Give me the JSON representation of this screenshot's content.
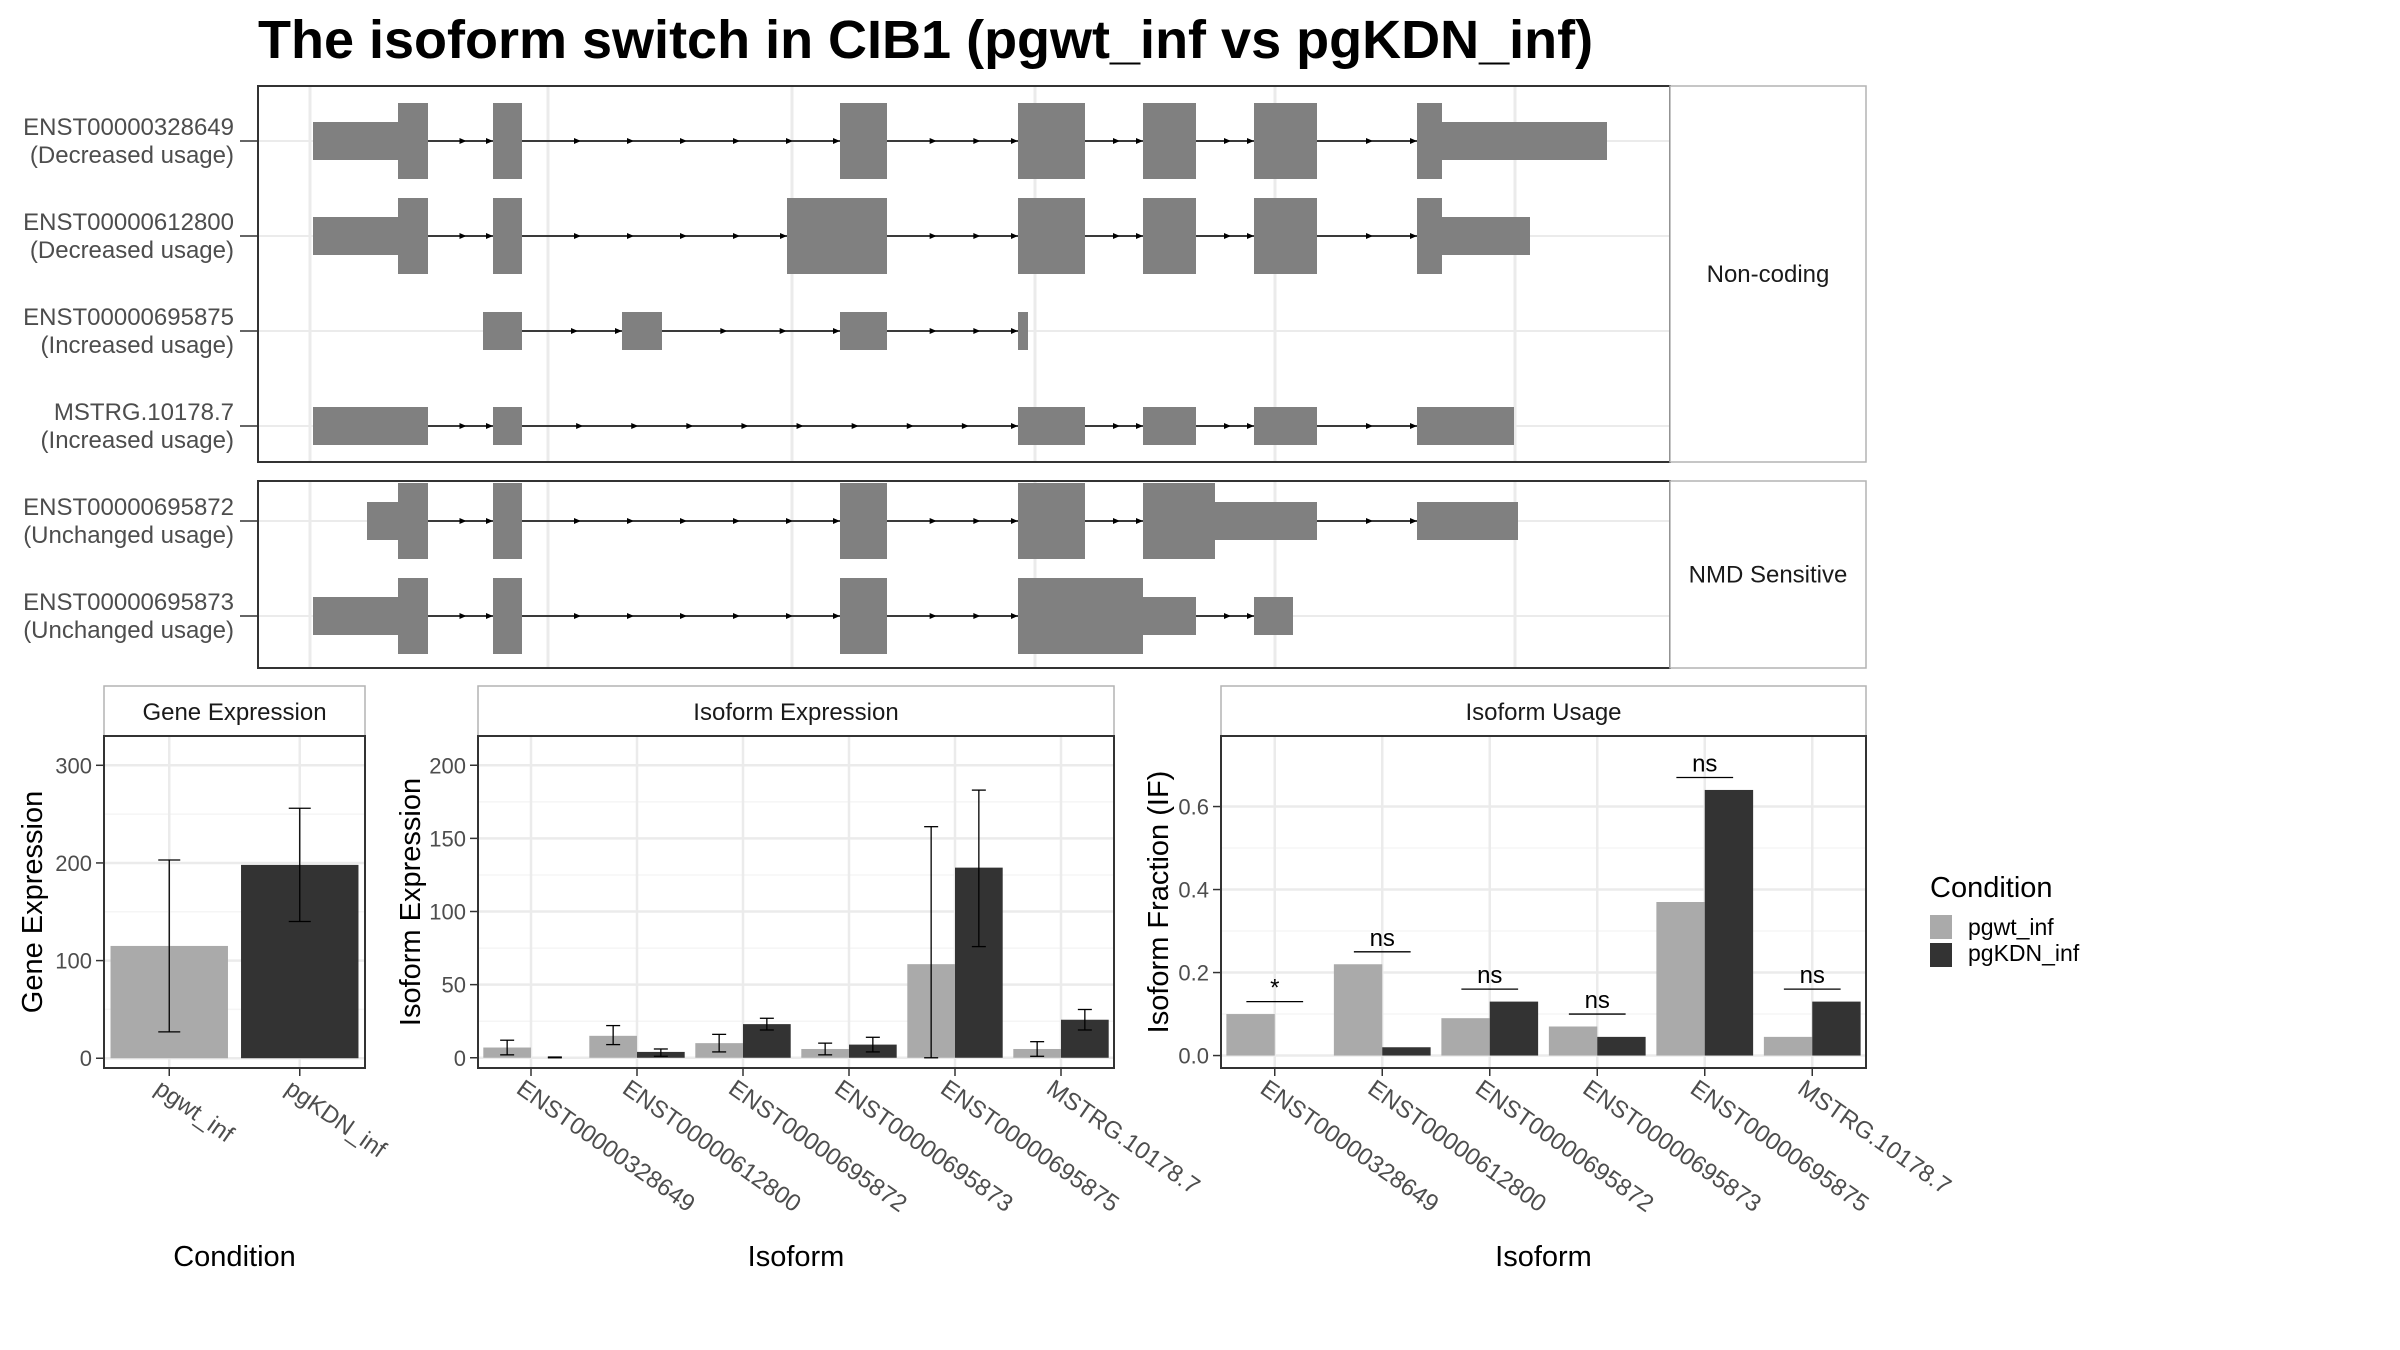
{
  "title": "The isoform switch in CIB1 (pgwt_inf vs pgKDN_inf)",
  "colors": {
    "pgwt_inf": "#aaaaaa",
    "pgKDN_inf": "#333333",
    "exon": "#808080",
    "grid": "#ebebeb",
    "panel_border": "#333333",
    "strip_border": "#b3b3b3"
  },
  "legend": {
    "title": "Condition",
    "items": [
      "pgwt_inf",
      "pgKDN_inf"
    ]
  },
  "chart_data": [
    {
      "type": "gene_model",
      "panel_groups": [
        {
          "label": "Non-coding",
          "isoforms": [
            {
              "name": "ENST00000328649",
              "usage": "(Decreased usage)"
            },
            {
              "name": "ENST00000612800",
              "usage": "(Decreased usage)"
            },
            {
              "name": "ENST00000695875",
              "usage": "(Increased usage)"
            },
            {
              "name": "MSTRG.10178.7",
              "usage": "(Increased usage)"
            }
          ]
        },
        {
          "label": "NMD Sensitive",
          "isoforms": [
            {
              "name": "ENST00000695872",
              "usage": "(Unchanged usage)"
            },
            {
              "name": "ENST00000695873",
              "usage": "(Unchanged usage)"
            }
          ]
        }
      ]
    },
    {
      "type": "bar",
      "title": "Gene Expression",
      "xlabel": "Condition",
      "ylabel": "Gene Expression",
      "categories": [
        "pgwt_inf",
        "pgKDN_inf"
      ],
      "values": [
        115,
        198
      ],
      "error_low": [
        27,
        140
      ],
      "error_high": [
        203,
        256
      ],
      "yticks": [
        0,
        100,
        200,
        300
      ],
      "ylim": [
        -10,
        330
      ]
    },
    {
      "type": "bar",
      "title": "Isoform Expression",
      "xlabel": "Isoform",
      "ylabel": "Isoform Expression",
      "categories": [
        "ENST00000328649",
        "ENST00000612800",
        "ENST00000695872",
        "ENST00000695873",
        "ENST00000695875",
        "MSTRG.10178.7"
      ],
      "series": [
        {
          "name": "pgwt_inf",
          "values": [
            7,
            15,
            10,
            6,
            64,
            6
          ],
          "error_low": [
            2,
            9,
            4,
            2,
            0,
            1
          ],
          "error_high": [
            12,
            22,
            16,
            10,
            158,
            11
          ]
        },
        {
          "name": "pgKDN_inf",
          "values": [
            0,
            4,
            23,
            9,
            130,
            26
          ],
          "error_low": [
            0,
            1,
            19,
            4,
            76,
            19
          ],
          "error_high": [
            0.5,
            6,
            27,
            14,
            183,
            33
          ]
        }
      ],
      "yticks": [
        0,
        50,
        100,
        150,
        200
      ],
      "ylim": [
        -7,
        220
      ]
    },
    {
      "type": "bar",
      "title": "Isoform Usage",
      "xlabel": "Isoform",
      "ylabel": "Isoform Fraction (IF)",
      "categories": [
        "ENST00000328649",
        "ENST00000612800",
        "ENST00000695872",
        "ENST00000695873",
        "ENST00000695875",
        "MSTRG.10178.7"
      ],
      "series": [
        {
          "name": "pgwt_inf",
          "values": [
            0.1,
            0.22,
            0.09,
            0.07,
            0.37,
            0.045
          ]
        },
        {
          "name": "pgKDN_inf",
          "values": [
            0.0,
            0.02,
            0.13,
            0.045,
            0.64,
            0.13
          ]
        }
      ],
      "significance": [
        "*",
        "ns",
        "ns",
        "ns",
        "ns",
        "ns"
      ],
      "yticks": [
        0.0,
        0.2,
        0.4,
        0.6
      ],
      "ylim": [
        -0.03,
        0.77
      ]
    }
  ]
}
